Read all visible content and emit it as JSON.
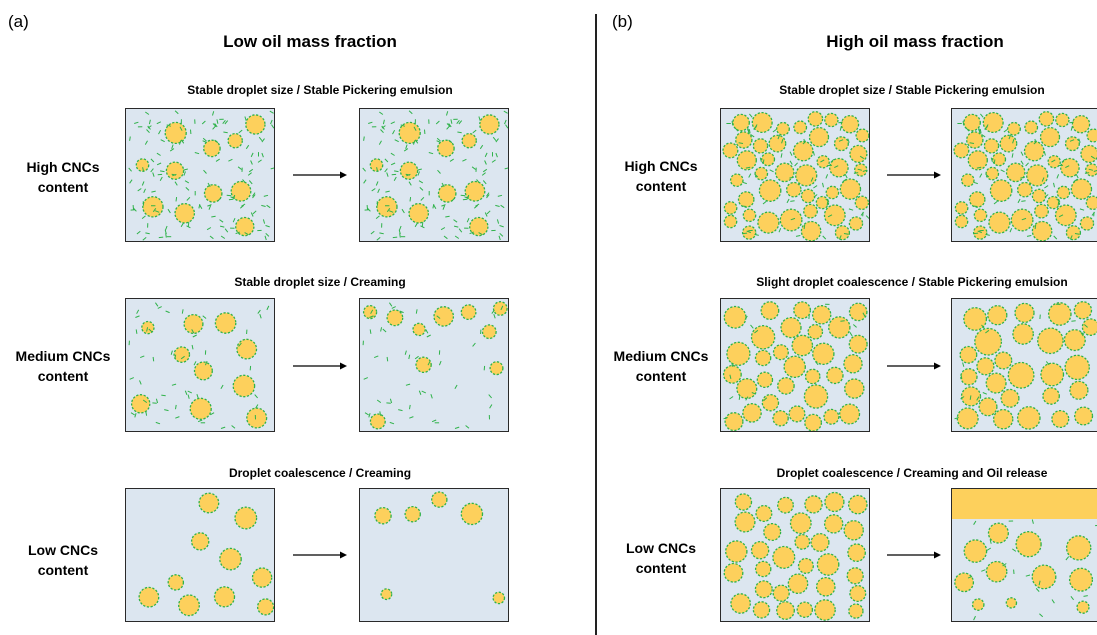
{
  "panel_a": {
    "letter": "(a)",
    "title": "Low oil mass fraction",
    "rows": [
      {
        "scenario": "Stable droplet size / Stable Pickering emulsion",
        "label_line1": "High CNCs",
        "label_line2": "content",
        "state": "high"
      },
      {
        "scenario": "Stable droplet size / Creaming",
        "label_line1": "Medium CNCs",
        "label_line2": "content",
        "state": "medium"
      },
      {
        "scenario": "Droplet coalescence / Creaming",
        "label_line1": "Low CNCs",
        "label_line2": "content",
        "state": "low"
      }
    ]
  },
  "panel_b": {
    "letter": "(b)",
    "title": "High oil mass fraction",
    "rows": [
      {
        "scenario": "Stable droplet size / Stable Pickering emulsion",
        "label_line1": "High CNCs",
        "label_line2": "content",
        "state": "high"
      },
      {
        "scenario": "Slight droplet coalescence / Stable Pickering emulsion",
        "label_line1": "Medium CNCs",
        "label_line2": "content",
        "state": "medium"
      },
      {
        "scenario": "Droplet coalescence / Creaming and Oil release",
        "label_line1": "Low CNCs",
        "label_line2": "content",
        "state": "low"
      }
    ]
  },
  "colors": {
    "droplet_fill": "#fdd05c",
    "cnc_green": "#2fb24a",
    "medium_background": "#dce6f0",
    "oil_layer": "#fdd05c"
  },
  "icons": {
    "arrow": "right-arrow-icon"
  }
}
